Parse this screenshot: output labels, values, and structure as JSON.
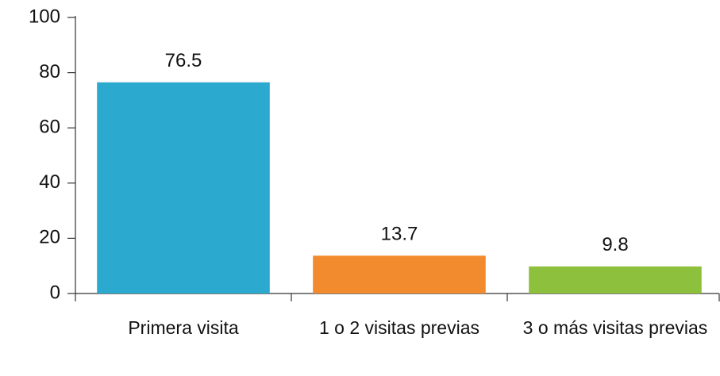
{
  "chart_data": {
    "type": "bar",
    "categories": [
      "Primera visita",
      "1 o 2 visitas previas",
      "3 o más visitas previas"
    ],
    "values": [
      76.5,
      13.7,
      9.8
    ],
    "colors": [
      "#2ba9cf",
      "#f28a2e",
      "#8dc03c"
    ],
    "ylim": [
      0,
      100
    ],
    "yticks": [
      0,
      20,
      40,
      60,
      80,
      100
    ],
    "grid": false
  }
}
